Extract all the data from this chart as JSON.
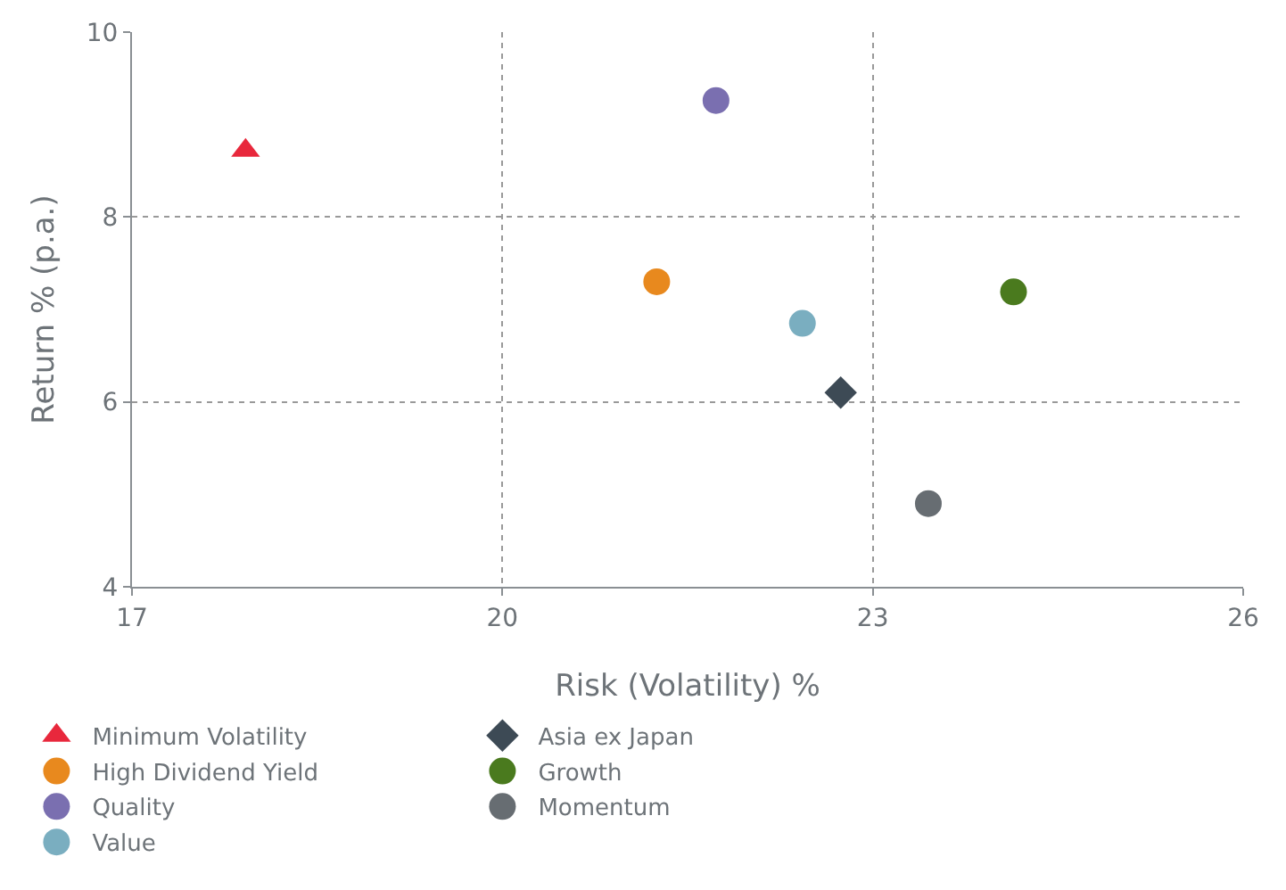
{
  "chart_data": {
    "type": "scatter",
    "xlabel": "Risk (Volatility) %",
    "ylabel": "Return % (p.a.)",
    "xlim": [
      17,
      26
    ],
    "xticks": [
      17,
      20,
      23,
      26
    ],
    "ylim": [
      4,
      10
    ],
    "yticks": [
      4,
      6,
      8,
      10
    ],
    "grid": "dotted",
    "legend": "bottom",
    "series": [
      {
        "name": "Minimum Volatility",
        "color": "#e8283c",
        "marker": "triangle",
        "x": [
          17.92
        ],
        "values": [
          8.72
        ]
      },
      {
        "name": "Asia ex Japan",
        "color": "#3d4a55",
        "marker": "diamond",
        "x": [
          22.74
        ],
        "values": [
          6.1
        ]
      },
      {
        "name": "High Dividend Yield",
        "color": "#e8891e",
        "marker": "circle",
        "x": [
          21.25
        ],
        "values": [
          7.3
        ]
      },
      {
        "name": "Growth",
        "color": "#4a7a1e",
        "marker": "circle",
        "x": [
          24.14
        ],
        "values": [
          7.19
        ]
      },
      {
        "name": "Quality",
        "color": "#7a6fb0",
        "marker": "circle",
        "x": [
          21.73
        ],
        "values": [
          9.26
        ]
      },
      {
        "name": "Momentum",
        "color": "#676d72",
        "marker": "circle",
        "x": [
          23.45
        ],
        "values": [
          4.9
        ]
      },
      {
        "name": "Value",
        "color": "#7aaec0",
        "marker": "circle",
        "x": [
          22.43
        ],
        "values": [
          6.85
        ]
      }
    ]
  }
}
